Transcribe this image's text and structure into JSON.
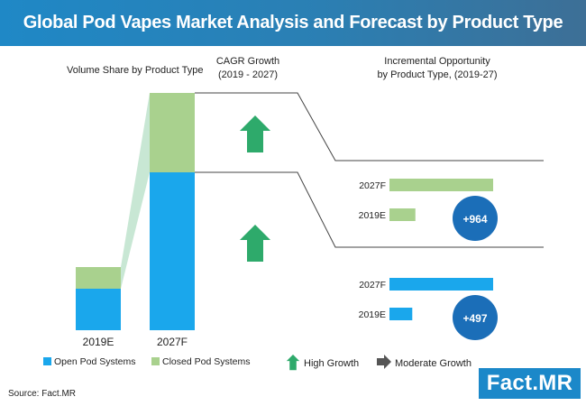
{
  "title": "Global Pod Vapes Market Analysis and Forecast by Product Type",
  "volume_share_title": "Volume Share by Product Type",
  "cagr_title_line1": "CAGR Growth",
  "cagr_title_line2": "(2019 - 2027)",
  "incremental_title_line1": "Incremental Opportunity",
  "incremental_title_line2": "by Product Type, (2019-27)",
  "source": "Source: Fact.MR",
  "logo_text": "Fact.MR",
  "chart_data": {
    "type": "bar",
    "stacked_volume": {
      "categories": [
        "2019E",
        "2027F"
      ],
      "series": [
        {
          "name": "Open Pod Systems",
          "values": [
            46,
            175
          ],
          "color": "#1aa7ec"
        },
        {
          "name": "Closed Pod Systems",
          "values": [
            24,
            88
          ],
          "color": "#a9d18e"
        }
      ]
    },
    "cagr": [
      {
        "segment": "Closed Pod Systems",
        "growth": "High Growth",
        "color": "#2eaa6b"
      },
      {
        "segment": "Open Pod Systems",
        "growth": "High Growth",
        "color": "#2eaa6b"
      }
    ],
    "incremental": [
      {
        "segment": "Closed Pod Systems",
        "categories": [
          "2027F",
          "2019E"
        ],
        "values": [
          100,
          25
        ],
        "badge": "+964",
        "color": "#a9d18e"
      },
      {
        "segment": "Open Pod Systems",
        "categories": [
          "2027F",
          "2019E"
        ],
        "values": [
          100,
          22
        ],
        "badge": "+497",
        "color": "#1aa7ec"
      }
    ],
    "legend": [
      {
        "label": "Open Pod Systems",
        "color": "#1aa7ec"
      },
      {
        "label": "Closed Pod Systems",
        "color": "#a9d18e"
      }
    ],
    "growth_legend": [
      {
        "label": "High Growth",
        "color": "#2eaa6b"
      },
      {
        "label": "Moderate Growth",
        "color": "#555555"
      }
    ],
    "colors": {
      "badge": "#1b6eb8",
      "connector": "#444444",
      "band": "#b5dfc6"
    }
  }
}
